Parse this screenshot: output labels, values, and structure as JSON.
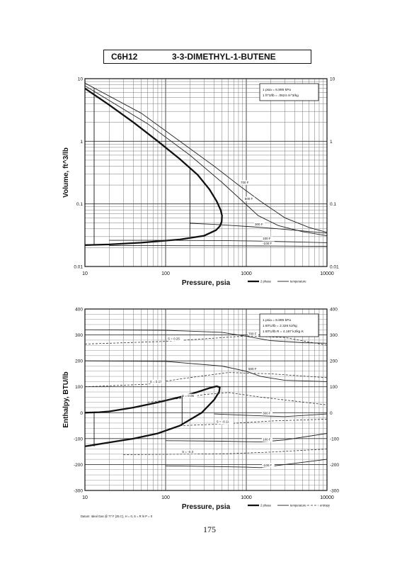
{
  "header": {
    "formula": "C6H12",
    "name": "3-3-DIMETHYL-1-BUTENE"
  },
  "page_number": "175",
  "chart_data": [
    {
      "type": "line",
      "title": "",
      "xlabel": "Pressure,  psia",
      "ylabel": "Volume, ft^3/lb",
      "xscale": "log",
      "yscale": "log",
      "xlim": [
        10,
        10000
      ],
      "ylim": [
        0.01,
        10
      ],
      "x_ticks": [
        "10",
        "100",
        "1000",
        "10000"
      ],
      "y_ticks": [
        "0.01",
        "0.1",
        "1",
        "10"
      ],
      "grid": true,
      "legend": "bottom-right",
      "note_lines": [
        "1 psia = 6.895 kPa",
        "1 ft^3/lb = .0624 m^3/kg"
      ],
      "legend_labels": [
        "2 phase",
        "temperature"
      ],
      "series": [
        {
          "style": "2phase",
          "x": [
            10,
            20,
            40,
            80,
            150,
            250,
            350,
            430,
            480,
            500,
            495,
            470,
            420,
            300,
            150,
            50,
            20,
            10
          ],
          "y": [
            7.0,
            3.8,
            2.0,
            1.0,
            0.52,
            0.29,
            0.17,
            0.11,
            0.08,
            0.065,
            0.052,
            0.044,
            0.038,
            0.031,
            0.027,
            0.024,
            0.0225,
            0.022
          ]
        },
        {
          "style": "temperature",
          "name": "700 F",
          "x": [
            10,
            50,
            150,
            400,
            800,
            1500,
            3000,
            6000,
            10000
          ],
          "y": [
            8.5,
            2.8,
            1.0,
            0.4,
            0.2,
            0.11,
            0.06,
            0.042,
            0.035
          ]
        },
        {
          "style": "temperature",
          "name": "500 F",
          "x": [
            10,
            60,
            200,
            500,
            900,
            1400,
            2500,
            5000,
            10000
          ],
          "y": [
            7.7,
            1.9,
            0.6,
            0.22,
            0.11,
            0.065,
            0.045,
            0.036,
            0.031
          ]
        },
        {
          "style": "temperature",
          "name": "300 F",
          "x": [
            200,
            400,
            700,
            1200,
            2500,
            5000,
            10000
          ],
          "y": [
            0.049,
            0.047,
            0.045,
            0.043,
            0.04,
            0.037,
            0.034
          ]
        },
        {
          "style": "temperature",
          "name": "100 F",
          "x": [
            20,
            100,
            600,
            1500,
            3000,
            6000,
            10000
          ],
          "y": [
            0.0262,
            0.0262,
            0.0258,
            0.0254,
            0.0249,
            0.0244,
            0.024
          ]
        },
        {
          "style": "temperature",
          "name": "-100 F",
          "x": [
            20,
            100,
            600,
            1500,
            3000,
            6000,
            10000
          ],
          "y": [
            0.0215,
            0.0215,
            0.0214,
            0.0213,
            0.0212,
            0.0211,
            0.021
          ]
        }
      ],
      "verticals": [
        {
          "x": 13,
          "y1": 0.022,
          "y2": 7.0
        },
        {
          "x": 200,
          "y1": 0.03,
          "y2": 0.38
        }
      ]
    },
    {
      "type": "line",
      "title": "",
      "xlabel": "Pressure,  psia",
      "ylabel": "Enthalpy, BTU/lb",
      "xscale": "log",
      "xlim": [
        10,
        10000
      ],
      "ylim": [
        -300,
        400
      ],
      "x_ticks": [
        "10",
        "100",
        "1000",
        "10000"
      ],
      "y_ticks": [
        "-300",
        "-200",
        "-100",
        "0",
        "100",
        "200",
        "300",
        "400"
      ],
      "grid": true,
      "legend": "bottom-right",
      "note_lines": [
        "1 psia = 6.895 kPa",
        "1 BTU/lb = 2.326 kJ/kg",
        "1 BTU/lb R = 4.187 kJ/kg K"
      ],
      "footnote": "Datum: Ideal Gas @ 77 F (25 C),  H = 0,  S = R ln P = 0",
      "legend_labels": [
        "2 phase",
        "temperature",
        "entropy"
      ],
      "series": [
        {
          "style": "2phase",
          "x": [
            10,
            15,
            20,
            40,
            80,
            150,
            250,
            350,
            430,
            470,
            460,
            400,
            280,
            150,
            80,
            40,
            20,
            10
          ],
          "y": [
            0,
            2,
            5,
            20,
            40,
            60,
            80,
            95,
            102,
            98,
            80,
            50,
            0,
            -50,
            -80,
            -100,
            -115,
            -130
          ]
        },
        {
          "style": "temperature",
          "name": "700 F",
          "x": [
            10,
            100,
            500,
            1000,
            2000,
            5000,
            10000
          ],
          "y": [
            320,
            318,
            310,
            295,
            278,
            270,
            268
          ]
        },
        {
          "style": "temperature",
          "name": "500 F",
          "x": [
            10,
            100,
            500,
            1000,
            1500,
            3000,
            10000
          ],
          "y": [
            200,
            198,
            180,
            160,
            140,
            125,
            120
          ]
        },
        {
          "style": "temperature",
          "name": "300 F",
          "x": [
            400,
            1000,
            1500,
            3000,
            10000
          ],
          "y": [
            -5,
            -10,
            -12,
            -15,
            -5
          ]
        },
        {
          "style": "temperature",
          "name": "100 F",
          "x": [
            100,
            500,
            1000,
            1500,
            3000,
            10000
          ],
          "y": [
            -108,
            -110,
            -112,
            -113,
            -105,
            -80
          ]
        },
        {
          "style": "temperature",
          "name": "-100 F",
          "x": [
            100,
            500,
            1000,
            1500,
            3000,
            10000
          ],
          "y": [
            -205,
            -208,
            -210,
            -212,
            -200,
            -180
          ]
        },
        {
          "style": "entropy",
          "name": "S = 0.25",
          "x": [
            10,
            100,
            300,
            1000,
            3000,
            10000
          ],
          "y": [
            265,
            275,
            285,
            296,
            290,
            260
          ]
        },
        {
          "style": "entropy",
          "name": "S = 0.17",
          "x": [
            10,
            60,
            150,
            600,
            2000,
            10000
          ],
          "y": [
            100,
            110,
            130,
            155,
            150,
            135
          ]
        },
        {
          "style": "entropy",
          "name": "S = 0.05",
          "x": [
            60,
            150,
            300,
            600,
            1500,
            10000
          ],
          "y": [
            40,
            55,
            70,
            78,
            60,
            30
          ]
        },
        {
          "style": "entropy",
          "name": "S = -0.11",
          "x": [
            150,
            400,
            1000,
            2000,
            10000
          ],
          "y": [
            -50,
            -45,
            -38,
            -32,
            -25
          ]
        },
        {
          "style": "entropy",
          "name": "S = -0.3",
          "x": [
            30,
            150,
            600,
            2000,
            10000
          ],
          "y": [
            -162,
            -160,
            -158,
            -152,
            -140
          ]
        }
      ],
      "verticals": [
        {
          "x": 13,
          "y1": -130,
          "y2": 0
        },
        {
          "x": 160,
          "y1": -50,
          "y2": 65
        }
      ]
    }
  ]
}
